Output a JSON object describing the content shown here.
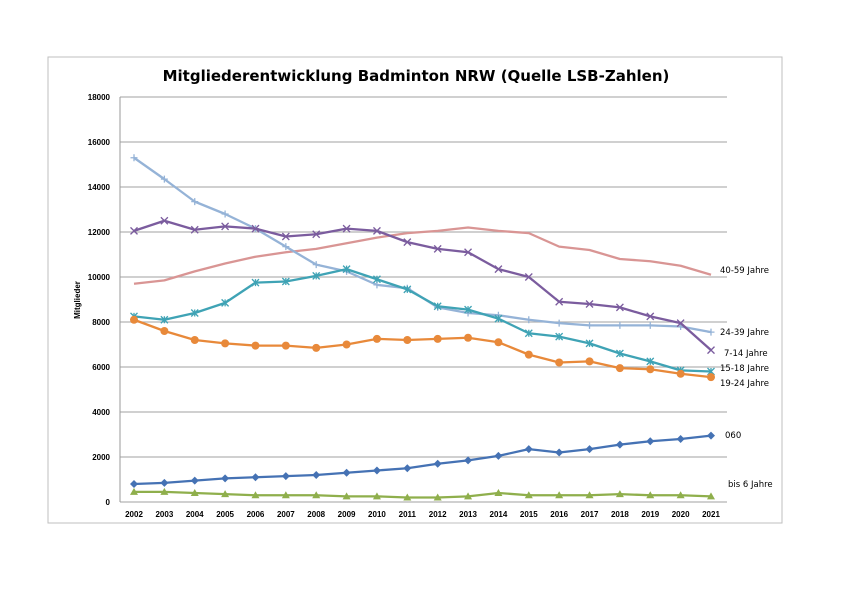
{
  "chart_data": {
    "type": "line",
    "title": "Mitgliederentwicklung Badminton NRW (Quelle LSB-Zahlen)",
    "xlabel": "",
    "ylabel": "Mitglieder",
    "ylim": [
      0,
      18000
    ],
    "yticks": [
      0,
      2000,
      4000,
      6000,
      8000,
      10000,
      12000,
      14000,
      16000,
      18000
    ],
    "grid": true,
    "legend": "inline-right",
    "categories": [
      "2002",
      "2003",
      "2004",
      "2005",
      "2006",
      "2007",
      "2008",
      "2009",
      "2010",
      "2011",
      "2012",
      "2013",
      "2014",
      "2015",
      "2016",
      "2017",
      "2018",
      "2019",
      "2020",
      "2021"
    ],
    "series": [
      {
        "name": "40-59 Jahre",
        "color": "#d99594",
        "marker": "none",
        "values": [
          9700,
          9850,
          10250,
          10600,
          10900,
          11100,
          11250,
          11500,
          11750,
          11950,
          12050,
          12200,
          12050,
          11950,
          11350,
          11200,
          10800,
          10700,
          10500,
          10100
        ]
      },
      {
        "name": "24-39 Jahre",
        "color": "#95b3d7",
        "marker": "plus",
        "values": [
          15300,
          14350,
          13350,
          12800,
          12150,
          11350,
          10550,
          10250,
          9650,
          9500,
          8650,
          8400,
          8300,
          8100,
          7950,
          7850,
          7850,
          7850,
          7800,
          7550
        ]
      },
      {
        "name": "7-14 Jahre",
        "color": "#7b5c9e",
        "marker": "x",
        "values": [
          12050,
          12500,
          12100,
          12250,
          12150,
          11800,
          11900,
          12150,
          12050,
          11550,
          11250,
          11100,
          10350,
          10000,
          8900,
          8800,
          8650,
          8250,
          7950,
          6750
        ]
      },
      {
        "name": "15-18 Jahre",
        "color": "#3fa3b5",
        "marker": "star",
        "values": [
          8250,
          8100,
          8400,
          8850,
          9750,
          9800,
          10050,
          10350,
          9900,
          9450,
          8700,
          8550,
          8150,
          7500,
          7350,
          7050,
          6600,
          6250,
          5850,
          5800
        ]
      },
      {
        "name": "19-24 Jahre",
        "color": "#e8893a",
        "marker": "circle",
        "values": [
          8100,
          7600,
          7200,
          7050,
          6950,
          6950,
          6850,
          7000,
          7250,
          7200,
          7250,
          7300,
          7100,
          6550,
          6200,
          6250,
          5950,
          5900,
          5700,
          5550
        ]
      },
      {
        "name": "060",
        "color": "#4572b4",
        "marker": "diamond",
        "values": [
          800,
          850,
          950,
          1050,
          1100,
          1150,
          1200,
          1300,
          1400,
          1500,
          1700,
          1850,
          2050,
          2350,
          2200,
          2350,
          2550,
          2700,
          2800,
          2950
        ]
      },
      {
        "name": "bis 6 Jahre",
        "color": "#8faf4c",
        "marker": "triangle",
        "values": [
          450,
          450,
          400,
          350,
          300,
          300,
          300,
          250,
          250,
          200,
          200,
          250,
          400,
          300,
          300,
          300,
          350,
          300,
          300,
          250
        ]
      }
    ]
  }
}
